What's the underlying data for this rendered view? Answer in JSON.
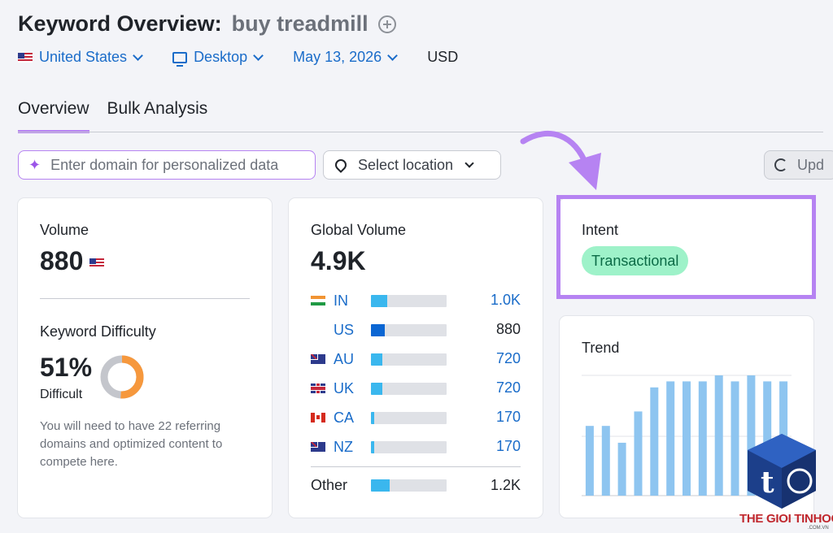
{
  "header": {
    "title": "Keyword Overview:",
    "keyword": "buy treadmill"
  },
  "filters": {
    "country": "United States",
    "device": "Desktop",
    "date": "May 13, 2026",
    "currency": "USD"
  },
  "tabs": [
    {
      "label": "Overview",
      "active": true
    },
    {
      "label": "Bulk Analysis",
      "active": false
    }
  ],
  "toolbar": {
    "domain_placeholder": "Enter domain for personalized data",
    "location_placeholder": "Select location",
    "update_label": "Upd"
  },
  "volume": {
    "label": "Volume",
    "value": "880"
  },
  "keyword_difficulty": {
    "label": "Keyword Difficulty",
    "value": "51%",
    "level": "Difficult",
    "percent": 51,
    "note": "You will need to have 22 referring domains and optimized content to compete here."
  },
  "global_volume": {
    "label": "Global Volume",
    "value": "4.9K",
    "countries": [
      {
        "code": "IN",
        "value": "1.0K",
        "share": 0.21,
        "flag": "in",
        "linked": true
      },
      {
        "code": "US",
        "value": "880",
        "share": 0.18,
        "flag": "us",
        "linked": false
      },
      {
        "code": "AU",
        "value": "720",
        "share": 0.15,
        "flag": "au",
        "linked": true
      },
      {
        "code": "UK",
        "value": "720",
        "share": 0.15,
        "flag": "uk",
        "linked": true
      },
      {
        "code": "CA",
        "value": "170",
        "share": 0.04,
        "flag": "ca",
        "linked": true
      },
      {
        "code": "NZ",
        "value": "170",
        "share": 0.04,
        "flag": "nz",
        "linked": true
      }
    ],
    "other": {
      "label": "Other",
      "value": "1.2K",
      "share": 0.25
    }
  },
  "intent": {
    "label": "Intent",
    "value": "Transactional"
  },
  "trend": {
    "label": "Trend",
    "values": [
      0.58,
      0.58,
      0.44,
      0.7,
      0.9,
      0.95,
      0.95,
      0.95,
      1.0,
      0.95,
      1.0,
      0.95,
      0.95
    ]
  },
  "watermark": {
    "brand": "THE GIOI TINHOC",
    "domain": ".COM.VN"
  },
  "colors": {
    "accent_purple": "#b683f2",
    "link_blue": "#1a6cc9",
    "bar_light": "#3ab7ee",
    "bar_dark": "#0b66d3",
    "trend_bar": "#8ec5f0",
    "kd_orange": "#f6983d",
    "intent_green": "#9ef2c9"
  }
}
